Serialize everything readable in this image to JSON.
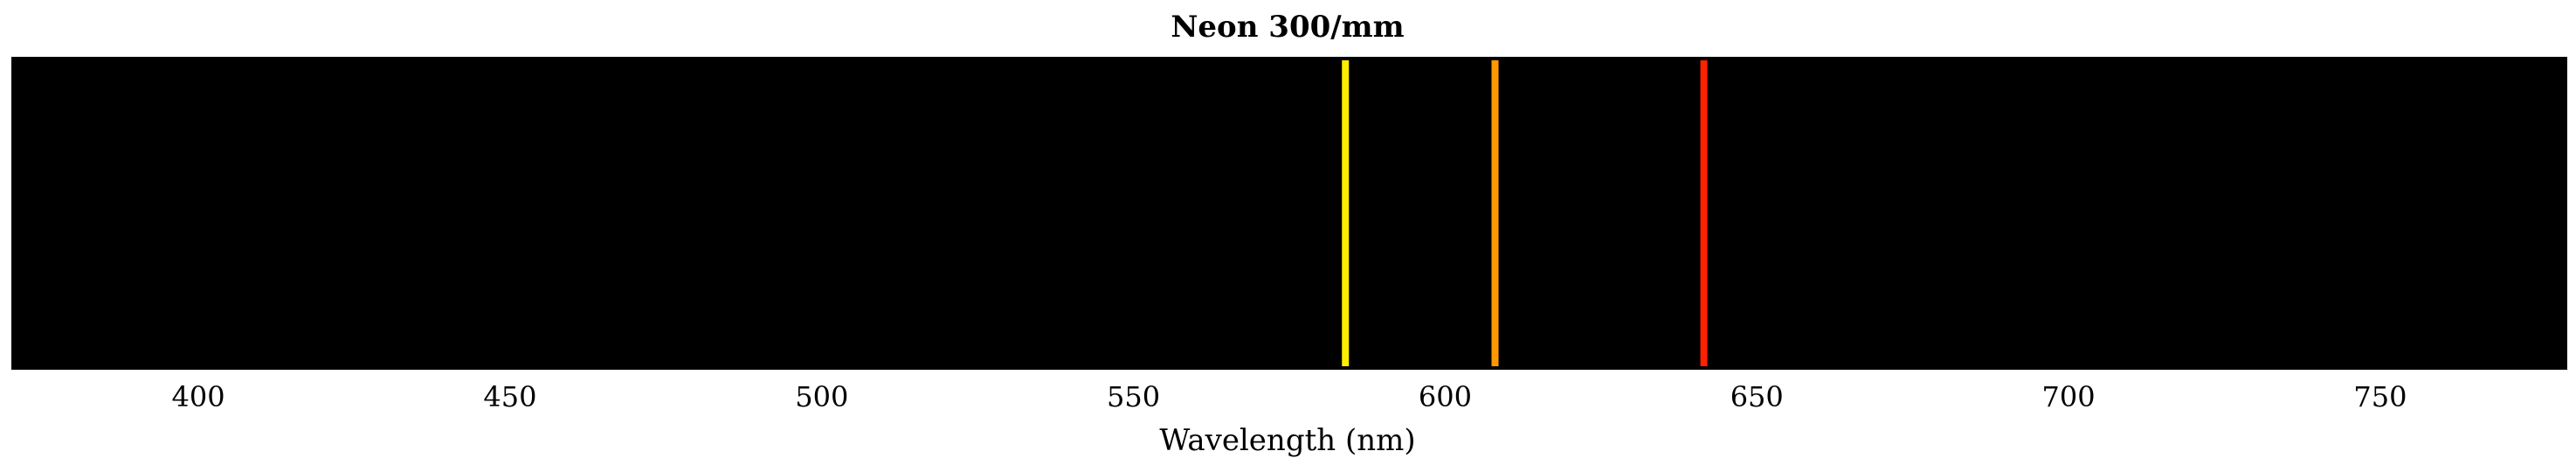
{
  "chart_data": {
    "type": "spectrum",
    "title": "Neon 300/mm",
    "xlabel": "Wavelength (nm)",
    "ylabel": "",
    "xlim": [
      370,
      780
    ],
    "background_color": "#000000",
    "grid": false,
    "legend": "none",
    "ticks": [
      "400",
      "450",
      "500",
      "550",
      "600",
      "650",
      "700",
      "750"
    ],
    "tick_values": [
      400,
      450,
      500,
      550,
      600,
      650,
      700,
      750
    ],
    "lines": [
      {
        "wavelength": 584,
        "color": "#ffee00"
      },
      {
        "wavelength": 608,
        "color": "#ff9900"
      },
      {
        "wavelength": 641.5,
        "color": "#ff2200"
      }
    ]
  }
}
